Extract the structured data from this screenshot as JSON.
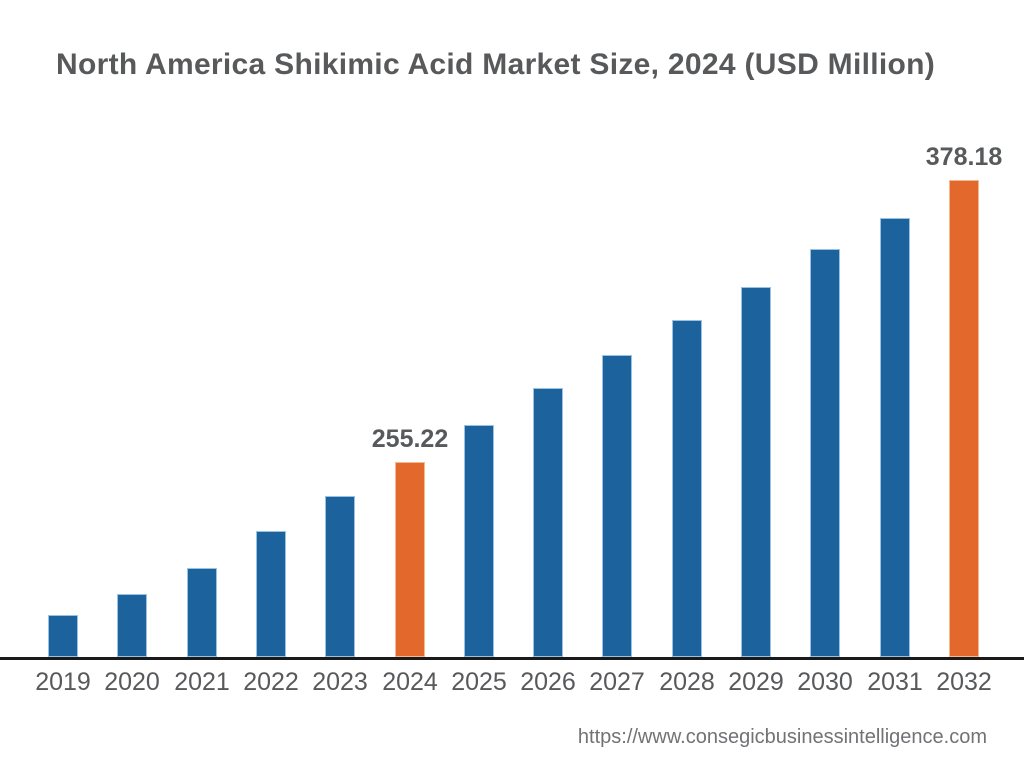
{
  "title": "North America Shikimic Acid Market Size, 2024 (USD Million)",
  "footer": {
    "url": "https://www.consegicbusinessintelligence.com"
  },
  "colors": {
    "background": "#ffffff",
    "bar_default": "#1c639e",
    "bar_highlight": "#e2692b",
    "text": "#58595b",
    "axis": "#1a1a1a",
    "footer_text": "#717275"
  },
  "chart_data": {
    "type": "bar",
    "title": "North America Shikimic Acid Market Size, 2024 (USD Million)",
    "xlabel": "",
    "ylabel": "",
    "unit": "USD Million",
    "categories": [
      "2019",
      "2020",
      "2021",
      "2022",
      "2023",
      "2024",
      "2025",
      "2026",
      "2027",
      "2028",
      "2029",
      "2030",
      "2031",
      "2032"
    ],
    "values": [
      188.6,
      197.7,
      209.0,
      225.1,
      240.4,
      255.22,
      271.4,
      287.5,
      301.9,
      317.1,
      331.5,
      348.1,
      361.6,
      378.18
    ],
    "data_labels": {
      "2024": "255.22",
      "2032": "378.18"
    },
    "highlighted": [
      "2024",
      "2032"
    ],
    "ylim": [
      170.2,
      400
    ],
    "axis_truncated": true,
    "grid": false,
    "legend": false,
    "note": "Only 2024 and 2032 carry printed data labels; other values are estimated from bar heights."
  }
}
